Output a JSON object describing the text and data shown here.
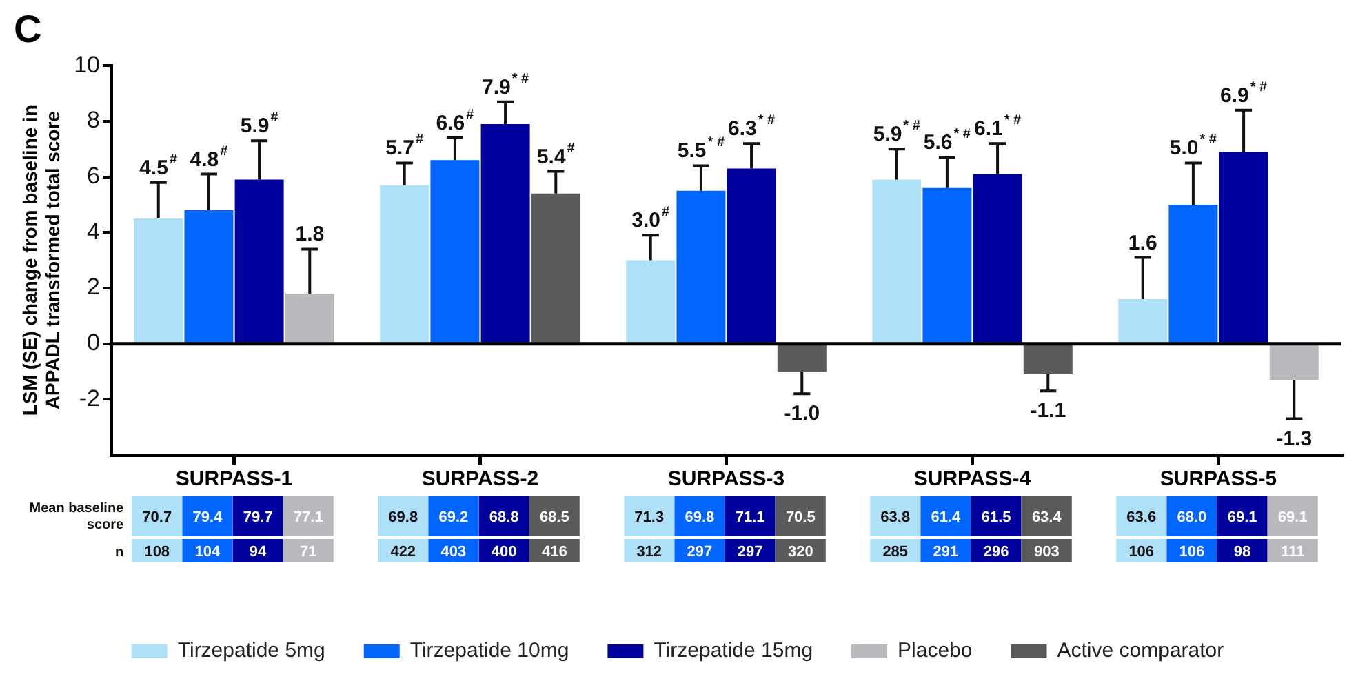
{
  "chart_data": {
    "type": "bar",
    "title": "C",
    "ylabel": "LSM (SE) change from baseline in APPADL transformed total score",
    "categories": [
      "SURPASS-1",
      "SURPASS-2",
      "SURPASS-3",
      "SURPASS-4",
      "SURPASS-5"
    ],
    "series": [
      {
        "name": "Tirzepatide 5mg",
        "color": "#aee0f8",
        "values": [
          4.5,
          5.7,
          3.0,
          5.9,
          1.6
        ],
        "errors": [
          1.3,
          0.8,
          0.9,
          1.1,
          1.5
        ],
        "value_labels": [
          "4.5$^{#}$",
          "5.7$^{#}$",
          "3.0$^{#}$",
          "5.9$^{* #}$",
          "1.6"
        ]
      },
      {
        "name": "Tirzepatide 10mg",
        "color": "#0066ff",
        "values": [
          4.8,
          6.6,
          5.5,
          5.6,
          5.0
        ],
        "errors": [
          1.3,
          0.8,
          0.9,
          1.1,
          1.5
        ],
        "value_labels": [
          "4.8$^{#}$",
          "6.6$^{#}$",
          "5.5$^{* #}$",
          "5.6$^{* #}$",
          "5.0$^{* #}$"
        ]
      },
      {
        "name": "Tirzepatide 15mg",
        "color": "#00009c",
        "values": [
          5.9,
          7.9,
          6.3,
          6.1,
          6.9
        ],
        "errors": [
          1.4,
          0.8,
          0.9,
          1.1,
          1.5
        ],
        "value_labels": [
          "5.9$^{#}$",
          "7.9$^{* #}$",
          "6.3$^{* #}$",
          "6.1$^{* #}$",
          "6.9$^{* #}$"
        ]
      },
      {
        "name": "Placebo",
        "color": "#b9b9be",
        "values": [
          1.8,
          null,
          null,
          null,
          -1.3
        ],
        "errors": [
          1.6,
          null,
          null,
          null,
          1.4
        ],
        "value_labels": [
          "1.8",
          null,
          null,
          null,
          "-1.3"
        ]
      },
      {
        "name": "Active comparator",
        "color": "#5a5a5a",
        "values": [
          null,
          5.4,
          -1.0,
          -1.1,
          null
        ],
        "errors": [
          null,
          0.8,
          0.8,
          0.6,
          null
        ],
        "value_labels": [
          null,
          "5.4$^{#}$",
          "-1.0",
          "-1.1",
          null
        ]
      }
    ],
    "ref_lines": [
      {
        "axis": "y",
        "value": 0,
        "color": "#000000"
      }
    ],
    "ylim": [
      -4,
      10
    ],
    "yticks": [
      -2,
      0,
      2,
      4,
      6,
      8,
      10
    ],
    "grid": false,
    "legend": "bottom",
    "annotations": [
      "Mean baseline score",
      "n",
      "70.7",
      "79.4",
      "79.7",
      "77.1",
      "108",
      "104",
      "94",
      "71",
      "69.8",
      "69.2",
      "68.8",
      "68.5",
      "422",
      "403",
      "400",
      "416",
      "71.3",
      "69.8",
      "71.1",
      "70.5",
      "312",
      "297",
      "297",
      "320",
      "63.8",
      "61.4",
      "61.5",
      "63.4",
      "285",
      "291",
      "296",
      "903",
      "63.6",
      "68.0",
      "69.1",
      "69.1",
      "106",
      "106",
      "98",
      "111"
    ]
  }
}
